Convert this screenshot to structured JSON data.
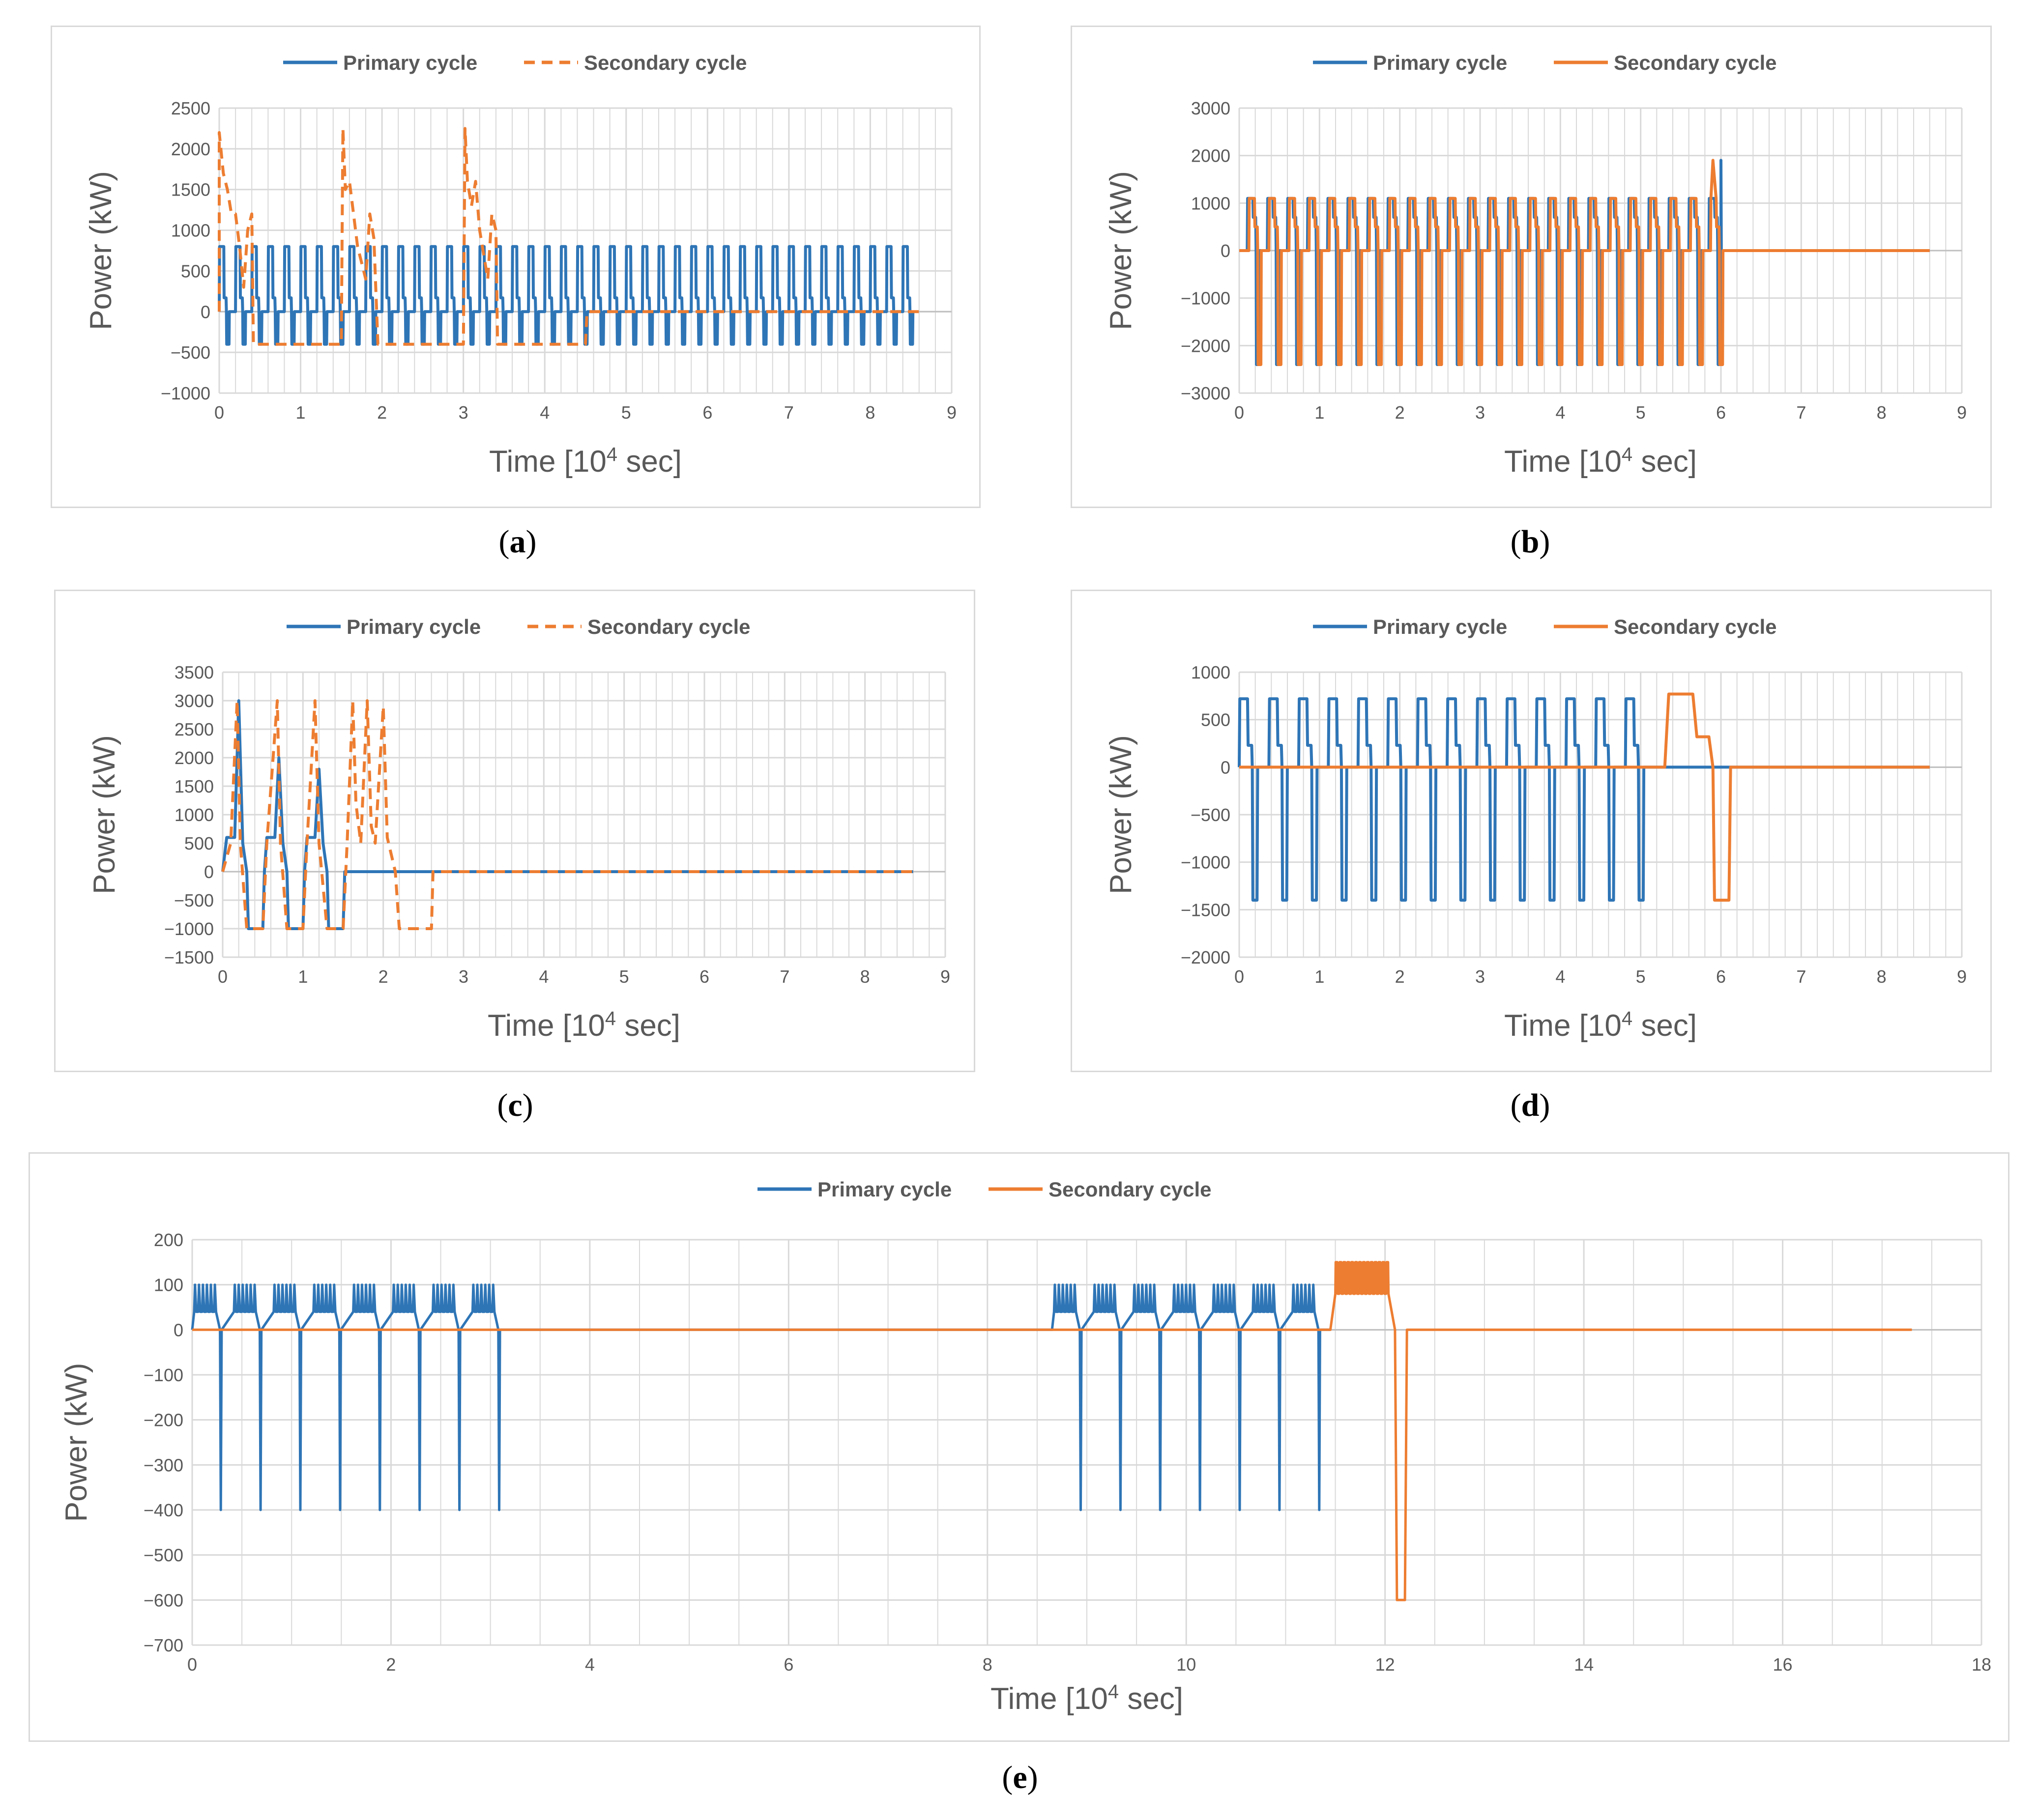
{
  "colors": {
    "primary": "#2e75b6",
    "secondary": "#ed7d31",
    "grid": "#d9d9d9",
    "text": "#595959",
    "border": "#d9d9d9"
  },
  "chart_data": [
    {
      "id": "a",
      "caption": "a",
      "type": "line",
      "xlabel_main": "Time [10",
      "xlabel_sup": "4",
      "xlabel_tail": " sec]",
      "ylabel": "Power (kW)",
      "xlim": [
        0,
        9
      ],
      "ylim": [
        -1000,
        2500
      ],
      "xticks": [
        "0",
        "1",
        "2",
        "3",
        "4",
        "5",
        "6",
        "7",
        "8",
        "9"
      ],
      "yticks": [
        "−1000",
        "−500",
        "0",
        "500",
        "1000",
        "1500",
        "2000",
        "2500"
      ],
      "ytick_values": [
        -1000,
        -500,
        0,
        500,
        1000,
        1500,
        2000,
        2500
      ],
      "series": [
        {
          "name": "Primary cycle",
          "style": "solid",
          "pattern": {
            "type": "square_wave",
            "t_start": 0,
            "t_end": 8.6,
            "period": 0.2,
            "high": 800,
            "mid": 170,
            "low": -400
          }
        },
        {
          "name": "Secondary cycle",
          "style": "dashed",
          "points": [
            [
              0,
              0
            ],
            [
              0,
              2200
            ],
            [
              0.05,
              1700
            ],
            [
              0.1,
              1500
            ],
            [
              0.15,
              1200
            ],
            [
              0.2,
              1200
            ],
            [
              0.25,
              800
            ],
            [
              0.3,
              300
            ],
            [
              0.35,
              1000
            ],
            [
              0.4,
              1200
            ],
            [
              0.42,
              -400
            ],
            [
              1.5,
              -400
            ],
            [
              1.52,
              2250
            ],
            [
              1.55,
              1500
            ],
            [
              1.6,
              1600
            ],
            [
              1.65,
              1200
            ],
            [
              1.7,
              800
            ],
            [
              1.8,
              400
            ],
            [
              1.85,
              1200
            ],
            [
              1.9,
              900
            ],
            [
              1.95,
              -400
            ],
            [
              3.0,
              -400
            ],
            [
              3.02,
              2250
            ],
            [
              3.05,
              1600
            ],
            [
              3.1,
              1300
            ],
            [
              3.15,
              1600
            ],
            [
              3.2,
              1000
            ],
            [
              3.3,
              400
            ],
            [
              3.35,
              1200
            ],
            [
              3.4,
              1000
            ],
            [
              3.42,
              -400
            ],
            [
              4.5,
              -400
            ],
            [
              4.52,
              0
            ],
            [
              8.6,
              0
            ]
          ]
        }
      ]
    },
    {
      "id": "b",
      "caption": "b",
      "type": "line",
      "xlabel_main": "Time [10",
      "xlabel_sup": "4",
      "xlabel_tail": " sec]",
      "ylabel": "Power (kW)",
      "xlim": [
        0,
        9
      ],
      "ylim": [
        -3000,
        3000
      ],
      "xticks": [
        "0",
        "1",
        "2",
        "3",
        "4",
        "5",
        "6",
        "7",
        "8",
        "9"
      ],
      "yticks": [
        "−3000",
        "−2000",
        "−1000",
        "0",
        "1000",
        "2000",
        "3000"
      ],
      "ytick_values": [
        -3000,
        -2000,
        -1000,
        0,
        1000,
        2000,
        3000
      ],
      "series": [
        {
          "name": "Primary cycle",
          "style": "solid",
          "pattern": {
            "type": "square_wave",
            "t_start": 0.1,
            "t_end": 6.2,
            "period": 0.25,
            "high": 1100,
            "mid": 700,
            "low": -2400
          },
          "extra": [
            [
              6.0,
              1900
            ],
            [
              6.2,
              0
            ],
            [
              8.6,
              0
            ]
          ]
        },
        {
          "name": "Secondary cycle",
          "style": "solid",
          "pattern": {
            "type": "square_wave",
            "t_start": 0.0,
            "t_end": 6.2,
            "period": 0.25,
            "high": 1100,
            "mid": 500,
            "low": -2400,
            "offset": 0.12
          },
          "extra": [
            [
              5.9,
              1900
            ],
            [
              6.2,
              0
            ],
            [
              8.6,
              0
            ]
          ]
        }
      ]
    },
    {
      "id": "c",
      "caption": "c",
      "type": "line",
      "xlabel_main": "Time [10",
      "xlabel_sup": "4",
      "xlabel_tail": " sec]",
      "ylabel": "Power (kW)",
      "xlim": [
        0,
        9
      ],
      "ylim": [
        -1500,
        3500
      ],
      "xticks": [
        "0",
        "1",
        "2",
        "3",
        "4",
        "5",
        "6",
        "7",
        "8",
        "9"
      ],
      "yticks": [
        "−1500",
        "−1000",
        "−500",
        "0",
        "500",
        "1000",
        "1500",
        "2000",
        "2500",
        "3000",
        "3500"
      ],
      "ytick_values": [
        -1500,
        -1000,
        -500,
        0,
        500,
        1000,
        1500,
        2000,
        2500,
        3000,
        3500
      ],
      "series": [
        {
          "name": "Primary cycle",
          "style": "solid",
          "points": [
            [
              0,
              0
            ],
            [
              0.05,
              600
            ],
            [
              0.15,
              600
            ],
            [
              0.2,
              3000
            ],
            [
              0.25,
              500
            ],
            [
              0.3,
              0
            ],
            [
              0.32,
              -1000
            ],
            [
              0.5,
              -1000
            ],
            [
              0.52,
              0
            ],
            [
              0.55,
              600
            ],
            [
              0.65,
              600
            ],
            [
              0.7,
              2000
            ],
            [
              0.75,
              500
            ],
            [
              0.8,
              0
            ],
            [
              0.82,
              -1000
            ],
            [
              1.0,
              -1000
            ],
            [
              1.02,
              0
            ],
            [
              1.05,
              600
            ],
            [
              1.15,
              600
            ],
            [
              1.2,
              1800
            ],
            [
              1.25,
              500
            ],
            [
              1.3,
              0
            ],
            [
              1.32,
              -1000
            ],
            [
              1.5,
              -1000
            ],
            [
              1.52,
              0
            ],
            [
              8.6,
              0
            ]
          ]
        },
        {
          "name": "Secondary cycle",
          "style": "dashed",
          "points": [
            [
              0,
              0
            ],
            [
              0.1,
              500
            ],
            [
              0.18,
              3000
            ],
            [
              0.22,
              500
            ],
            [
              0.3,
              -1000
            ],
            [
              0.5,
              -1000
            ],
            [
              0.55,
              500
            ],
            [
              0.68,
              3000
            ],
            [
              0.72,
              500
            ],
            [
              0.8,
              -1000
            ],
            [
              1.0,
              -1000
            ],
            [
              1.05,
              500
            ],
            [
              1.15,
              3000
            ],
            [
              1.2,
              500
            ],
            [
              1.3,
              -1000
            ],
            [
              1.5,
              -1000
            ],
            [
              1.55,
              500
            ],
            [
              1.62,
              3000
            ],
            [
              1.66,
              1200
            ],
            [
              1.72,
              500
            ],
            [
              1.8,
              3000
            ],
            [
              1.85,
              800
            ],
            [
              1.9,
              500
            ],
            [
              2.0,
              2900
            ],
            [
              2.05,
              600
            ],
            [
              2.1,
              300
            ],
            [
              2.15,
              0
            ],
            [
              2.2,
              -1000
            ],
            [
              2.6,
              -1000
            ],
            [
              2.62,
              0
            ],
            [
              8.6,
              0
            ]
          ]
        }
      ]
    },
    {
      "id": "d",
      "caption": "d",
      "type": "line",
      "xlabel_main": "Time [10",
      "xlabel_sup": "4",
      "xlabel_tail": " sec]",
      "ylabel": "Power (kW)",
      "xlim": [
        0,
        9
      ],
      "ylim": [
        -2000,
        1000
      ],
      "xticks": [
        "0",
        "1",
        "2",
        "3",
        "4",
        "5",
        "6",
        "7",
        "8",
        "9"
      ],
      "yticks": [
        "−2000",
        "−1500",
        "−1000",
        "−500",
        "0",
        "500",
        "1000"
      ],
      "ytick_values": [
        -2000,
        -1500,
        -1000,
        -500,
        0,
        500,
        1000
      ],
      "series": [
        {
          "name": "Primary cycle",
          "style": "solid",
          "pattern": {
            "type": "square_wave",
            "t_start": 0.0,
            "t_end": 5.35,
            "period": 0.37,
            "high": 720,
            "mid": 230,
            "low": -1400
          },
          "extra": [
            [
              5.35,
              0
            ],
            [
              8.6,
              0
            ]
          ]
        },
        {
          "name": "Secondary cycle",
          "style": "solid",
          "points": [
            [
              0,
              0
            ],
            [
              5.3,
              0
            ],
            [
              5.35,
              770
            ],
            [
              5.65,
              770
            ],
            [
              5.7,
              320
            ],
            [
              5.85,
              320
            ],
            [
              5.9,
              0
            ],
            [
              5.92,
              -1400
            ],
            [
              6.1,
              -1400
            ],
            [
              6.12,
              0
            ],
            [
              8.6,
              0
            ]
          ]
        }
      ]
    },
    {
      "id": "e",
      "caption": "e",
      "type": "line",
      "xlabel_main": "Time [10",
      "xlabel_sup": "4",
      "xlabel_tail": " sec]",
      "ylabel": "Power (kW)",
      "xlim": [
        0,
        18
      ],
      "ylim": [
        -700,
        200
      ],
      "xticks": [
        "0",
        "2",
        "4",
        "6",
        "8",
        "10",
        "12",
        "14",
        "16",
        "18"
      ],
      "yticks": [
        "−700",
        "−600",
        "−500",
        "−400",
        "−300",
        "−200",
        "−100",
        "0",
        "100",
        "200"
      ],
      "ytick_values": [
        -700,
        -600,
        -500,
        -400,
        -300,
        -200,
        -100,
        0,
        100,
        200
      ],
      "series": [
        {
          "name": "Primary cycle",
          "style": "solid",
          "blocks": [
            {
              "t_start": 0,
              "t_end": 3.2,
              "period": 0.4,
              "high": 100,
              "low": -400
            },
            {
              "t_start": 8.65,
              "t_end": 11.45,
              "period": 0.4,
              "high": 100,
              "low": -400
            }
          ]
        },
        {
          "name": "Secondary cycle",
          "style": "solid",
          "points": [
            [
              0,
              0
            ],
            [
              11.45,
              0
            ],
            [
              11.5,
              80
            ],
            [
              12.05,
              80
            ],
            [
              12.1,
              0
            ],
            [
              12.12,
              -600
            ],
            [
              12.2,
              -600
            ],
            [
              12.22,
              0
            ],
            [
              17.3,
              0
            ]
          ],
          "burst": {
            "t_start": 11.5,
            "t_end": 12.05,
            "high": 150,
            "low": 80
          }
        }
      ]
    }
  ]
}
